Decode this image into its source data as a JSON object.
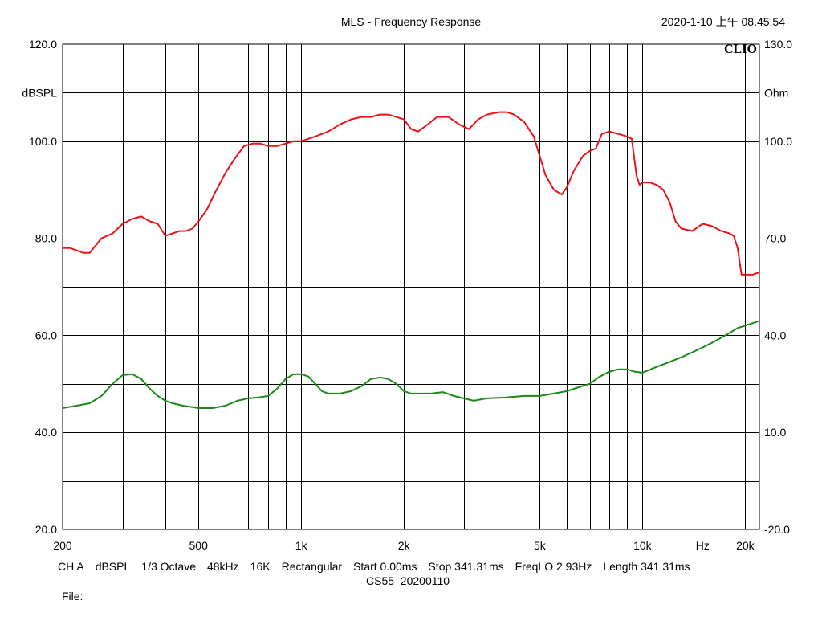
{
  "header": {
    "title": "MLS - Frequency Response",
    "datetime": "2020-1-10 上午 08.45.54",
    "brand": "CLIO"
  },
  "footer": {
    "items": [
      "CH A",
      "dBSPL",
      "1/3 Octave",
      "48kHz",
      "16K",
      "Rectangular",
      "Start 0.00ms",
      "Stop 341.31ms",
      "FreqLO 2.93Hz",
      "Length 341.31ms"
    ],
    "line2": "CS55  20200110",
    "file_label": "File:"
  },
  "colors": {
    "spl_curve": "#e8141a",
    "impedance_curve": "#1a8a1a",
    "grid": "#000000"
  },
  "chart_data": {
    "type": "line",
    "title": "MLS - Frequency Response",
    "x_scale": "log",
    "xlim": [
      200,
      22000
    ],
    "x_tick_labels": [
      {
        "value": 200,
        "label": "200"
      },
      {
        "value": 500,
        "label": "500"
      },
      {
        "value": 1000,
        "label": "1k"
      },
      {
        "value": 2000,
        "label": "2k"
      },
      {
        "value": 5000,
        "label": "5k"
      },
      {
        "value": 10000,
        "label": "10k"
      },
      {
        "value": 15000,
        "label": "Hz"
      },
      {
        "value": 20000,
        "label": "20k"
      }
    ],
    "x_gridlines": [
      300,
      400,
      500,
      600,
      700,
      800,
      900,
      1000,
      2000,
      3000,
      4000,
      5000,
      6000,
      7000,
      8000,
      9000,
      10000,
      20000
    ],
    "ylabel": "dBSPL",
    "ylim": [
      20,
      120
    ],
    "y_ticks": [
      120,
      100,
      80,
      60,
      40,
      20
    ],
    "y_tick_labels": [
      "120.0",
      "100.0",
      "80.0",
      "60.0",
      "40.0",
      "20.0"
    ],
    "y_gridlines": [
      30,
      40,
      50,
      60,
      70,
      80,
      90,
      100,
      110
    ],
    "y2label": "Ohm",
    "y2lim": [
      -20,
      130
    ],
    "y2_ticks": [
      130,
      100,
      70,
      40,
      10,
      -20
    ],
    "y2_tick_labels": [
      "130.0",
      "100.0",
      "70.0",
      "40.0",
      "10.0",
      "-20.0"
    ],
    "grid": true,
    "series": [
      {
        "axis": "left",
        "x": [
          200,
          210,
          220,
          230,
          240,
          260,
          280,
          300,
          320,
          340,
          360,
          380,
          400,
          420,
          440,
          460,
          480,
          500,
          530,
          560,
          600,
          640,
          680,
          720,
          760,
          800,
          850,
          900,
          950,
          1000,
          1100,
          1200,
          1300,
          1400,
          1500,
          1600,
          1700,
          1800,
          1900,
          2000,
          2100,
          2200,
          2350,
          2500,
          2700,
          2900,
          3100,
          3300,
          3500,
          3800,
          4000,
          4200,
          4500,
          4800,
          5200,
          5500,
          5800,
          6000,
          6300,
          6700,
          7000,
          7300,
          7600,
          8000,
          8500,
          9000,
          9300,
          9600,
          9800,
          10000,
          10500,
          11000,
          11500,
          12000,
          12500,
          13000,
          14000,
          15000,
          16000,
          17000,
          18000,
          18500,
          19000,
          19500,
          20000,
          21000,
          22000
        ],
        "values": [
          78,
          78,
          77.5,
          77,
          77,
          80,
          81,
          83,
          84,
          84.5,
          83.5,
          83,
          80.5,
          81,
          81.5,
          81.5,
          82,
          83.5,
          86,
          89.5,
          93.5,
          96.5,
          99,
          99.5,
          99.5,
          99,
          99,
          99.5,
          100,
          100,
          101,
          102,
          103.5,
          104.5,
          105,
          105,
          105.5,
          105.5,
          105,
          104.5,
          102.5,
          102,
          103.5,
          105,
          105,
          103.5,
          102.5,
          104.5,
          105.5,
          106,
          106,
          105.5,
          104,
          101,
          93,
          90,
          89,
          90.5,
          94,
          97,
          98,
          98.5,
          101.5,
          102,
          101.5,
          101,
          100.5,
          93,
          91,
          91.5,
          91.5,
          91,
          90,
          87.5,
          83.5,
          82,
          81.5,
          83,
          82.5,
          81.5,
          81,
          80.5,
          78,
          72.5,
          72.5,
          72.5,
          73
        ]
      },
      {
        "axis": "left",
        "x": [
          200,
          220,
          240,
          260,
          280,
          300,
          320,
          340,
          360,
          380,
          400,
          420,
          450,
          480,
          500,
          550,
          600,
          650,
          700,
          750,
          800,
          850,
          900,
          950,
          1000,
          1050,
          1100,
          1150,
          1200,
          1300,
          1400,
          1500,
          1600,
          1700,
          1800,
          1900,
          2000,
          2100,
          2200,
          2400,
          2600,
          2800,
          3000,
          3200,
          3500,
          4000,
          4500,
          5000,
          5500,
          6000,
          6500,
          7000,
          7500,
          8000,
          8500,
          9000,
          9500,
          10000,
          11000,
          12000,
          13000,
          14000,
          15000,
          16000,
          17000,
          18000,
          19000,
          20000,
          21000,
          22000
        ],
        "values": [
          45,
          45.5,
          46,
          47.5,
          50,
          51.8,
          52,
          51,
          49,
          47.5,
          46.5,
          46,
          45.5,
          45.2,
          45,
          45,
          45.5,
          46.5,
          47,
          47.2,
          47.5,
          49,
          51,
          52,
          52,
          51.5,
          50,
          48.5,
          48,
          48,
          48.5,
          49.5,
          51,
          51.3,
          51,
          50,
          48.5,
          48,
          48,
          48,
          48.3,
          47.5,
          47,
          46.5,
          47,
          47.2,
          47.5,
          47.5,
          48,
          48.5,
          49.3,
          50,
          51.5,
          52.5,
          53,
          53,
          52.5,
          52.3,
          53.5,
          54.5,
          55.5,
          56.5,
          57.5,
          58.5,
          59.5,
          60.5,
          61.5,
          62,
          62.5,
          63
        ]
      }
    ]
  }
}
